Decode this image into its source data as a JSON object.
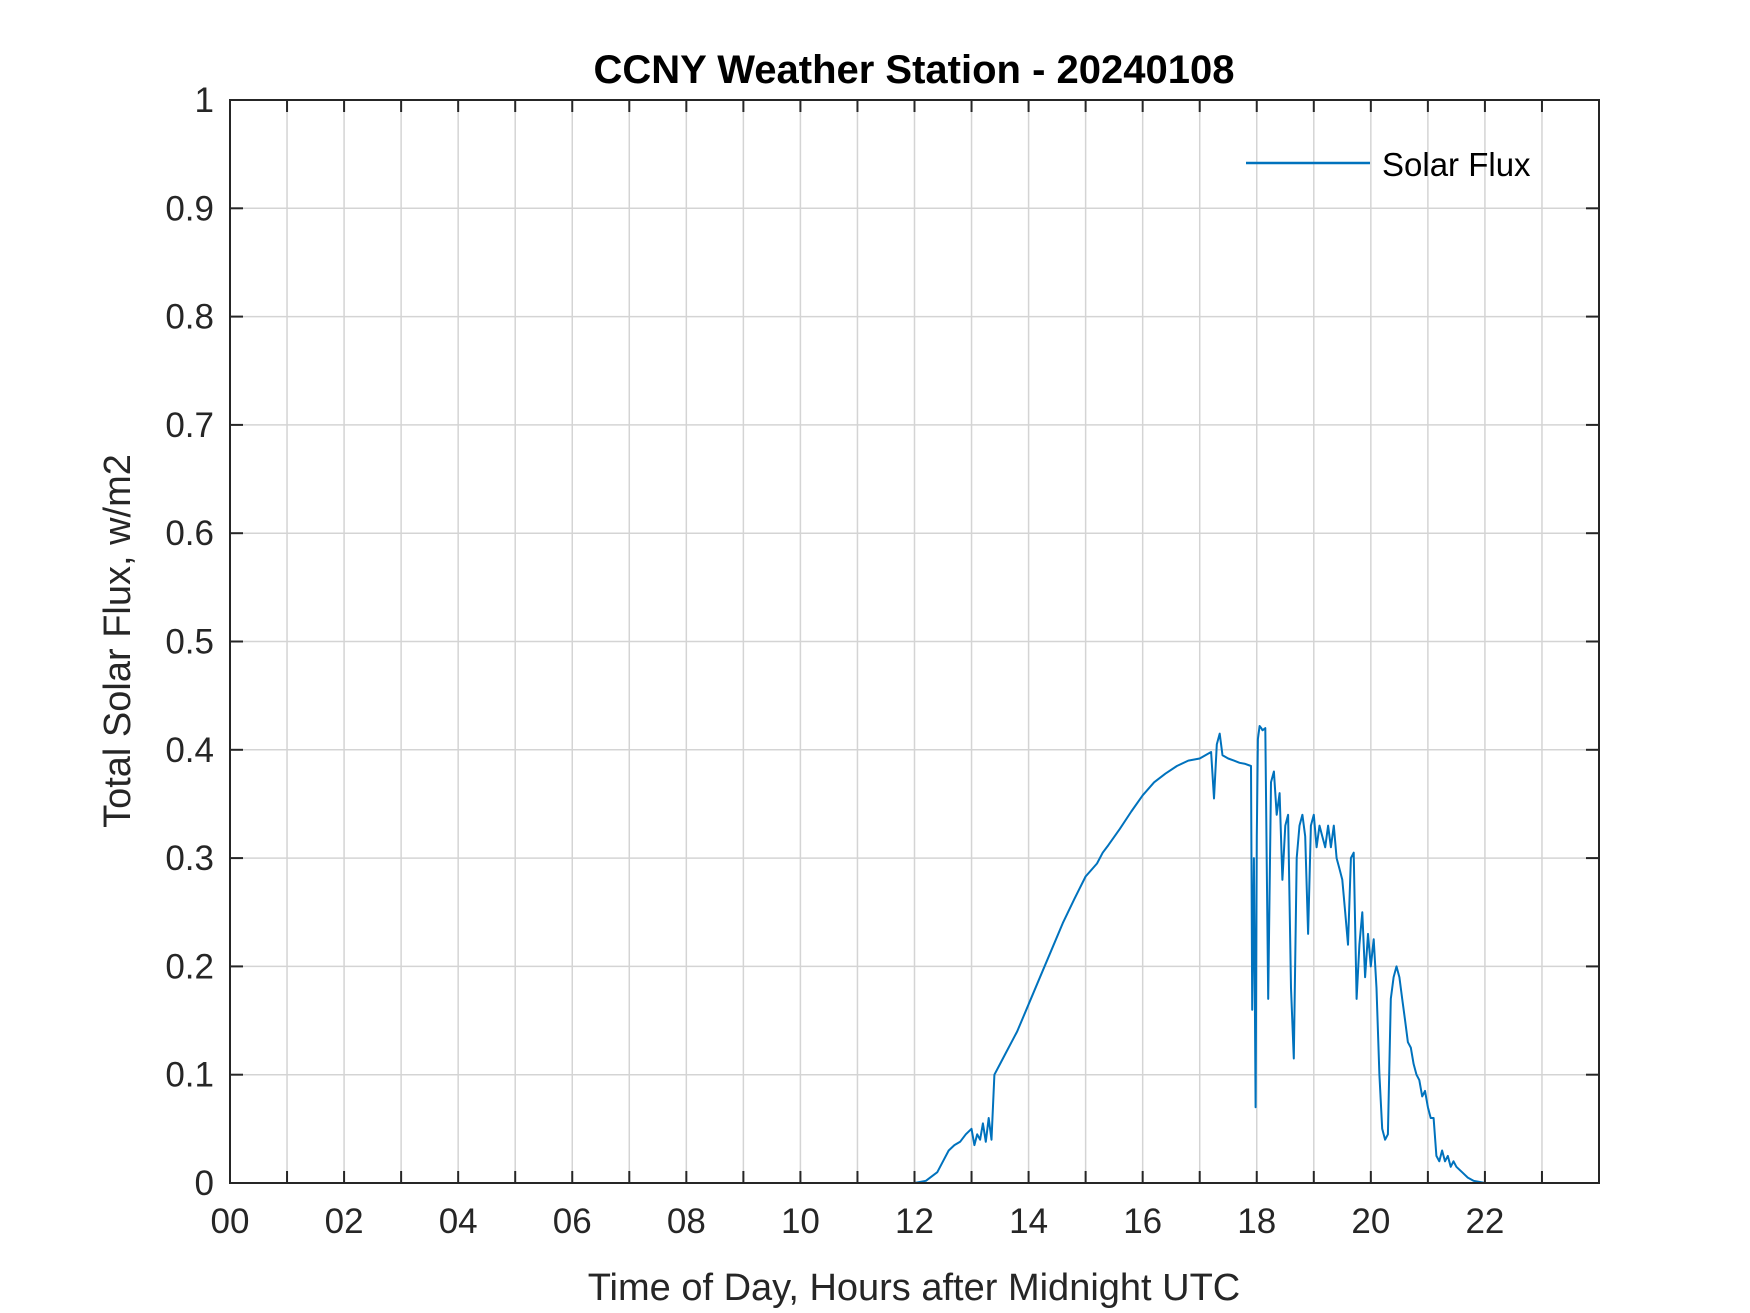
{
  "chart_data": {
    "type": "line",
    "title": "CCNY Weather Station - 20240108",
    "xlabel": "Time of Day, Hours after Midnight UTC",
    "ylabel": "Total Solar Flux, w/m2",
    "xlim": [
      0,
      24
    ],
    "ylim": [
      0,
      1
    ],
    "xticks": [
      0,
      2,
      4,
      6,
      8,
      10,
      12,
      14,
      16,
      18,
      20,
      22
    ],
    "xtick_labels": [
      "00",
      "02",
      "04",
      "06",
      "08",
      "10",
      "12",
      "14",
      "16",
      "18",
      "20",
      "22"
    ],
    "yticks": [
      0,
      0.1,
      0.2,
      0.3,
      0.4,
      0.5,
      0.6,
      0.7,
      0.8,
      0.9,
      1
    ],
    "ytick_labels": [
      "0",
      "0.1",
      "0.2",
      "0.3",
      "0.4",
      "0.5",
      "0.6",
      "0.7",
      "0.8",
      "0.9",
      "1"
    ],
    "grid": true,
    "legend": {
      "position": "top-right",
      "entries": [
        "Solar Flux"
      ]
    },
    "series": [
      {
        "name": "Solar Flux",
        "color": "#0072BD",
        "x": [
          0,
          12.0,
          12.2,
          12.4,
          12.5,
          12.6,
          12.7,
          12.8,
          12.9,
          13.0,
          13.05,
          13.1,
          13.15,
          13.2,
          13.25,
          13.3,
          13.35,
          13.4,
          13.5,
          13.6,
          13.7,
          13.8,
          14.0,
          14.2,
          14.4,
          14.6,
          14.8,
          15.0,
          15.2,
          15.3,
          15.4,
          15.6,
          15.8,
          16.0,
          16.2,
          16.4,
          16.6,
          16.8,
          17.0,
          17.1,
          17.2,
          17.25,
          17.3,
          17.35,
          17.4,
          17.5,
          17.6,
          17.7,
          17.8,
          17.9,
          17.92,
          17.95,
          17.98,
          18.0,
          18.02,
          18.05,
          18.08,
          18.1,
          18.15,
          18.2,
          18.25,
          18.3,
          18.35,
          18.4,
          18.45,
          18.5,
          18.55,
          18.6,
          18.65,
          18.7,
          18.75,
          18.8,
          18.85,
          18.9,
          18.95,
          19.0,
          19.05,
          19.1,
          19.15,
          19.2,
          19.25,
          19.3,
          19.35,
          19.4,
          19.45,
          19.5,
          19.55,
          19.6,
          19.65,
          19.7,
          19.75,
          19.8,
          19.85,
          19.9,
          19.95,
          20.0,
          20.05,
          20.1,
          20.15,
          20.2,
          20.25,
          20.3,
          20.35,
          20.4,
          20.45,
          20.5,
          20.55,
          20.6,
          20.65,
          20.7,
          20.75,
          20.8,
          20.85,
          20.9,
          20.95,
          21.0,
          21.05,
          21.1,
          21.15,
          21.2,
          21.25,
          21.3,
          21.35,
          21.4,
          21.45,
          21.5,
          21.6,
          21.7,
          21.8,
          21.9,
          22.0,
          22.1,
          24.0
        ],
        "y": [
          0,
          0,
          0.002,
          0.01,
          0.02,
          0.03,
          0.035,
          0.038,
          0.045,
          0.05,
          0.035,
          0.045,
          0.04,
          0.055,
          0.038,
          0.06,
          0.04,
          0.1,
          0.11,
          0.12,
          0.13,
          0.14,
          0.165,
          0.19,
          0.215,
          0.24,
          0.262,
          0.283,
          0.295,
          0.305,
          0.312,
          0.327,
          0.343,
          0.358,
          0.37,
          0.378,
          0.385,
          0.39,
          0.392,
          0.395,
          0.398,
          0.355,
          0.405,
          0.415,
          0.395,
          0.392,
          0.39,
          0.388,
          0.387,
          0.385,
          0.16,
          0.3,
          0.07,
          0.32,
          0.41,
          0.422,
          0.42,
          0.418,
          0.42,
          0.17,
          0.37,
          0.38,
          0.34,
          0.36,
          0.28,
          0.33,
          0.34,
          0.18,
          0.115,
          0.3,
          0.33,
          0.34,
          0.32,
          0.23,
          0.33,
          0.34,
          0.31,
          0.33,
          0.32,
          0.31,
          0.33,
          0.31,
          0.33,
          0.3,
          0.29,
          0.28,
          0.25,
          0.22,
          0.3,
          0.305,
          0.17,
          0.22,
          0.25,
          0.19,
          0.23,
          0.2,
          0.225,
          0.18,
          0.1,
          0.05,
          0.04,
          0.045,
          0.17,
          0.19,
          0.2,
          0.19,
          0.17,
          0.15,
          0.13,
          0.125,
          0.11,
          0.1,
          0.095,
          0.08,
          0.085,
          0.07,
          0.06,
          0.06,
          0.025,
          0.02,
          0.03,
          0.02,
          0.025,
          0.015,
          0.02,
          0.015,
          0.01,
          0.005,
          0.002,
          0.001,
          0,
          0,
          0
        ]
      }
    ]
  }
}
